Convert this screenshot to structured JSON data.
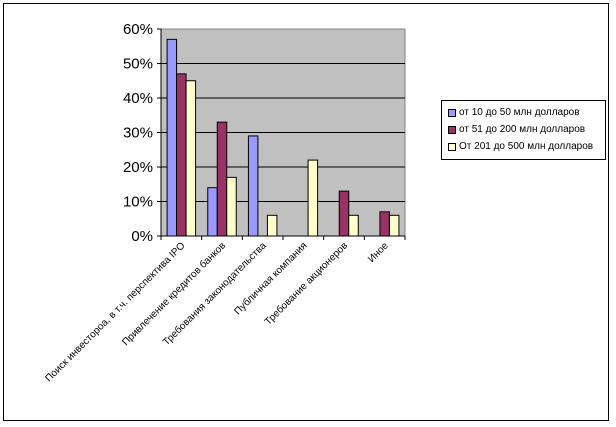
{
  "chart_data": {
    "type": "bar",
    "categories": [
      "Поиск инвестороа, в т.ч. перспектива IPO",
      "Привлечение кредитов банков",
      "Требования законодательства",
      "Публичная компания",
      "Требование акционеров",
      "Иное"
    ],
    "series": [
      {
        "name": "от 10 до 50 млн долларов",
        "values": [
          57,
          14,
          29,
          0,
          0,
          0
        ],
        "color": "#9999ff"
      },
      {
        "name": "от 51 до 200 млн долларов",
        "values": [
          47,
          33,
          0,
          0,
          13,
          7
        ],
        "color": "#993366"
      },
      {
        "name": "От 201 до 500 млн долларов",
        "values": [
          45,
          17,
          6,
          22,
          6,
          6
        ],
        "color": "#ffffcc"
      }
    ],
    "y_ticks": [
      "0%",
      "10%",
      "20%",
      "30%",
      "40%",
      "50%",
      "60%"
    ],
    "ylim": [
      0,
      60
    ],
    "unit": "%",
    "grid": true,
    "legend": "right",
    "plot_background": "#c0c0c0"
  }
}
